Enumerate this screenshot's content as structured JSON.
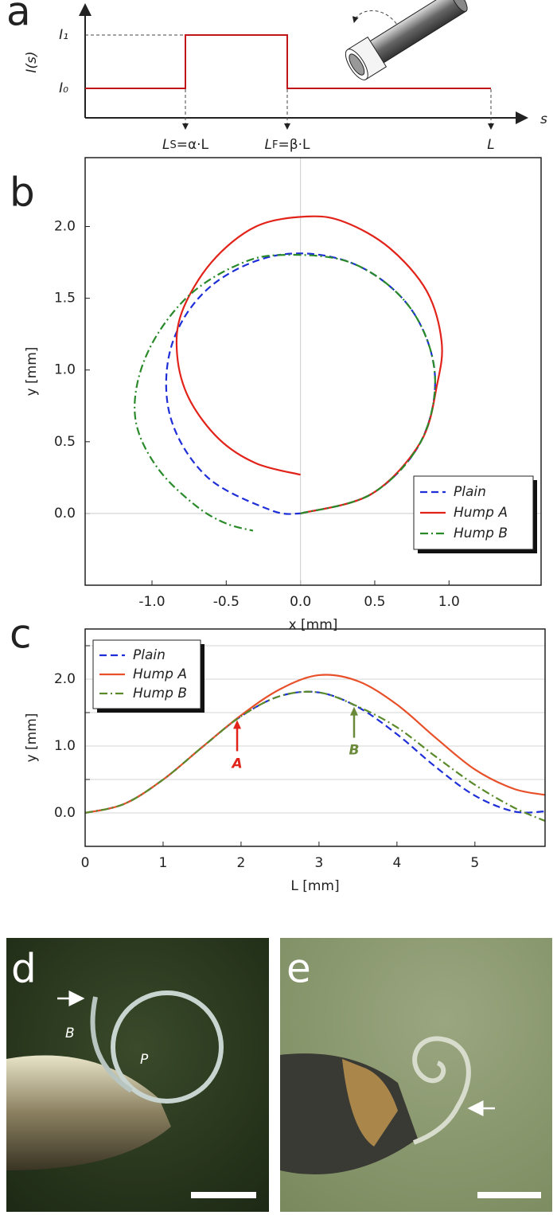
{
  "panel_a": {
    "label": "a",
    "y_axis_label": "I(s)",
    "x_axis_label": "s",
    "level_high": "I₁",
    "level_low": "I₀",
    "start": {
      "main": "L",
      "sub": "S",
      "rest": "=α·L"
    },
    "end": {
      "main": "L",
      "sub": "F",
      "rest": "=β·L"
    },
    "length": "L"
  },
  "chart_data": [
    {
      "type": "line",
      "label": "b",
      "xlabel": "x [mm]",
      "ylabel": "y [mm]",
      "xlim": [
        -1.45,
        1.62
      ],
      "ylim": [
        -0.5,
        2.48
      ],
      "xticks": [
        {
          "value": -1,
          "label": "-1.0"
        },
        {
          "value": -0.5,
          "label": "-0.5"
        },
        {
          "value": 0,
          "label": "0.0"
        },
        {
          "value": 0.5,
          "label": "0.5"
        },
        {
          "value": 1,
          "label": "1.0"
        }
      ],
      "yticks": [
        {
          "value": 0,
          "label": "0.0"
        },
        {
          "value": 0.5,
          "label": "0.5"
        },
        {
          "value": 1,
          "label": "1.0"
        },
        {
          "value": 1.5,
          "label": "1.5"
        },
        {
          "value": 2,
          "label": "2.0"
        }
      ],
      "zero_lines": true,
      "legend": "lower right",
      "series": [
        {
          "name": "Plain",
          "color": "#1f2fd8",
          "dash": "dashed",
          "x": [
            0,
            0.475,
            0.809,
            0.904,
            0.73,
            0.342,
            -0.15,
            -0.606,
            -0.866,
            -0.879,
            -0.632,
            -0.197,
            0
          ],
          "y": [
            0,
            0.134,
            0.498,
            0.982,
            1.445,
            1.747,
            1.801,
            1.582,
            1.177,
            0.684,
            0.258,
            0.022,
            0
          ]
        },
        {
          "name": "Hump A",
          "color": "#e2231a",
          "dash": "solid",
          "x": [
            0,
            0.475,
            0.809,
            0.92,
            0.95,
            0.85,
            0.6,
            0.3,
            0.05,
            -0.3,
            -0.6,
            -0.8,
            -0.83,
            -0.75,
            -0.55,
            -0.3,
            0
          ],
          "y": [
            0,
            0.134,
            0.498,
            0.9,
            1.2,
            1.55,
            1.85,
            2.03,
            2.07,
            2.0,
            1.75,
            1.4,
            1.1,
            0.8,
            0.52,
            0.35,
            0.27
          ]
        },
        {
          "name": "Hump B",
          "color": "#2a8a2a",
          "dash": "dashdot",
          "x": [
            0,
            0.475,
            0.809,
            0.904,
            0.73,
            0.342,
            -0.15,
            -0.45,
            -0.75,
            -0.98,
            -1.1,
            -1.1,
            -0.95,
            -0.7,
            -0.5,
            -0.32
          ],
          "y": [
            0,
            0.134,
            0.498,
            0.982,
            1.445,
            1.747,
            1.801,
            1.72,
            1.52,
            1.22,
            0.9,
            0.6,
            0.3,
            0.05,
            -0.07,
            -0.12
          ]
        }
      ]
    },
    {
      "type": "line",
      "label": "c",
      "xlabel": "L [mm]",
      "ylabel": "y [mm]",
      "xlim": [
        0,
        5.9
      ],
      "ylim": [
        -0.5,
        2.75
      ],
      "xticks": [
        0,
        1,
        2,
        3,
        4,
        5
      ],
      "yticks": [
        {
          "value": 0,
          "label": "0.0"
        },
        {
          "value": 1,
          "label": "1.0"
        },
        {
          "value": 2,
          "label": "2.0"
        }
      ],
      "minor_yticks": [
        0.5,
        1.5,
        2.5
      ],
      "grid": true,
      "legend": "upper left",
      "x": [
        0,
        0.5,
        1,
        1.5,
        2,
        2.5,
        3,
        3.5,
        4,
        4.5,
        5,
        5.5,
        5.9
      ],
      "series": [
        {
          "name": "Plain",
          "color": "#1f2fd8",
          "dash": "dashed",
          "values": [
            0,
            0.134,
            0.498,
            0.982,
            1.445,
            1.747,
            1.801,
            1.582,
            1.177,
            0.684,
            0.258,
            0.022,
            0.023
          ]
        },
        {
          "name": "Hump A",
          "color": "#e8502a",
          "dash": "solid",
          "values": [
            0,
            0.134,
            0.498,
            0.982,
            1.46,
            1.85,
            2.06,
            1.97,
            1.62,
            1.12,
            0.65,
            0.36,
            0.27
          ]
        },
        {
          "name": "Hump B",
          "color": "#5a8a2a",
          "dash": "dashdot",
          "values": [
            0,
            0.134,
            0.498,
            0.982,
            1.445,
            1.747,
            1.801,
            1.59,
            1.28,
            0.84,
            0.42,
            0.08,
            -0.12
          ]
        }
      ],
      "annotations": [
        {
          "text": "A",
          "x": 1.95,
          "y": 1.4,
          "color": "#e2231a"
        },
        {
          "text": "B",
          "x": 3.45,
          "y": 1.6,
          "color": "#6a8a3a"
        }
      ]
    }
  ],
  "photos": [
    {
      "label": "d",
      "annotations": [
        "B",
        "P"
      ]
    },
    {
      "label": "e"
    }
  ]
}
